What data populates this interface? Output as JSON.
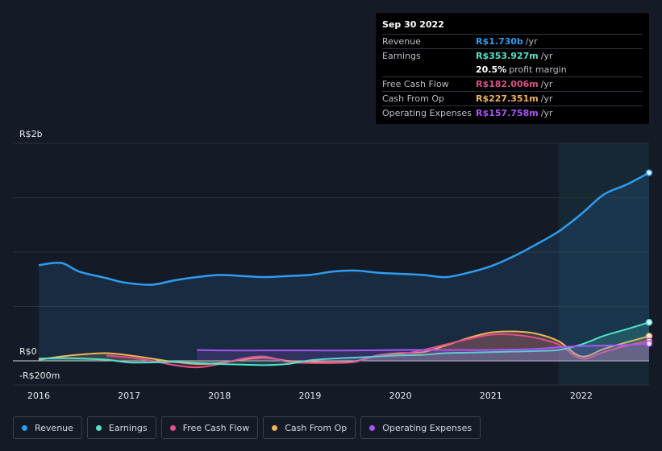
{
  "tooltip": {
    "date": "Sep 30 2022",
    "rows": [
      {
        "label": "Revenue",
        "value": "R$1.730b",
        "unit": "/yr",
        "color": "#2e9cf0"
      },
      {
        "label": "Earnings",
        "value": "R$353.927m",
        "unit": "/yr",
        "color": "#4fe3cc"
      },
      {
        "label": "",
        "value": "20.5%",
        "unit": "profit margin",
        "color": "#ffffff"
      },
      {
        "label": "Free Cash Flow",
        "value": "R$182.006m",
        "unit": "/yr",
        "color": "#e0508a"
      },
      {
        "label": "Cash From Op",
        "value": "R$227.351m",
        "unit": "/yr",
        "color": "#f0b35a"
      },
      {
        "label": "Operating Expenses",
        "value": "R$157.758m",
        "unit": "/yr",
        "color": "#a855f7"
      }
    ]
  },
  "legend": [
    {
      "label": "Revenue",
      "color": "#2e9cf0"
    },
    {
      "label": "Earnings",
      "color": "#4fe3cc"
    },
    {
      "label": "Free Cash Flow",
      "color": "#e0508a"
    },
    {
      "label": "Cash From Op",
      "color": "#f0b35a"
    },
    {
      "label": "Operating Expenses",
      "color": "#a855f7"
    }
  ],
  "chart_data": {
    "type": "area",
    "y_tick_labels": [
      "R$2b",
      "R$0",
      "-R$200m"
    ],
    "ylim": [
      -200,
      2000
    ],
    "x_tick_labels": [
      "2016",
      "2017",
      "2018",
      "2019",
      "2020",
      "2021",
      "2022"
    ],
    "xlim": [
      2015.9,
      2022.75
    ],
    "highlight_start": 2021.75,
    "grid": true,
    "series": [
      {
        "name": "Revenue",
        "color": "#2e9cf0",
        "x": [
          2016.0,
          2016.25,
          2016.45,
          2016.75,
          2016.95,
          2017.25,
          2017.5,
          2017.75,
          2018.0,
          2018.25,
          2018.5,
          2018.75,
          2019.0,
          2019.25,
          2019.5,
          2019.75,
          2020.0,
          2020.25,
          2020.5,
          2020.75,
          2021.0,
          2021.25,
          2021.5,
          2021.75,
          2022.0,
          2022.25,
          2022.5,
          2022.75
        ],
        "y": [
          880,
          900,
          820,
          760,
          720,
          700,
          740,
          770,
          790,
          780,
          770,
          780,
          790,
          820,
          830,
          810,
          800,
          790,
          770,
          810,
          870,
          960,
          1070,
          1190,
          1350,
          1530,
          1620,
          1730
        ]
      },
      {
        "name": "Earnings",
        "color": "#4fe3cc",
        "x": [
          2016.0,
          2016.25,
          2016.5,
          2016.75,
          2017.0,
          2017.25,
          2017.5,
          2017.75,
          2018.0,
          2018.25,
          2018.5,
          2018.75,
          2019.0,
          2019.25,
          2019.5,
          2019.75,
          2020.0,
          2020.25,
          2020.5,
          2020.75,
          2021.0,
          2021.25,
          2021.5,
          2021.75,
          2022.0,
          2022.25,
          2022.5,
          2022.75
        ],
        "y": [
          20,
          25,
          20,
          10,
          -15,
          -15,
          -10,
          -20,
          -30,
          -35,
          -40,
          -30,
          5,
          20,
          30,
          40,
          50,
          55,
          70,
          75,
          80,
          85,
          90,
          100,
          150,
          230,
          290,
          354
        ]
      },
      {
        "name": "Free Cash Flow",
        "color": "#e0508a",
        "x": [
          2016.75,
          2017.0,
          2017.25,
          2017.5,
          2017.75,
          2018.0,
          2018.25,
          2018.5,
          2018.75,
          2019.0,
          2019.25,
          2019.5,
          2019.75,
          2020.0,
          2020.25,
          2020.5,
          2020.75,
          2021.0,
          2021.25,
          2021.5,
          2021.75,
          2022.0,
          2022.25,
          2022.5,
          2022.75
        ],
        "y": [
          50,
          30,
          0,
          -40,
          -60,
          -30,
          20,
          40,
          -10,
          -20,
          -20,
          -10,
          50,
          60,
          100,
          150,
          200,
          240,
          240,
          210,
          150,
          20,
          80,
          140,
          182
        ]
      },
      {
        "name": "Cash From Op",
        "color": "#f0b35a",
        "x": [
          2016.0,
          2016.25,
          2016.5,
          2016.75,
          2017.0,
          2017.25,
          2017.5,
          2017.75,
          2018.0,
          2018.25,
          2018.5,
          2018.75,
          2019.0,
          2019.25,
          2019.5,
          2019.75,
          2020.0,
          2020.25,
          2020.5,
          2020.75,
          2021.0,
          2021.25,
          2021.5,
          2021.75,
          2022.0,
          2022.25,
          2022.5,
          2022.75
        ],
        "y": [
          10,
          40,
          60,
          70,
          50,
          20,
          -10,
          -30,
          -20,
          10,
          30,
          0,
          -10,
          -15,
          -5,
          50,
          70,
          80,
          140,
          210,
          260,
          270,
          250,
          180,
          40,
          110,
          170,
          227
        ]
      },
      {
        "name": "Operating Expenses",
        "color": "#a855f7",
        "x": [
          2017.75,
          2018.0,
          2018.5,
          2019.0,
          2019.5,
          2020.0,
          2020.5,
          2021.0,
          2021.5,
          2021.75,
          2022.0,
          2022.5,
          2022.75
        ],
        "y": [
          100,
          95,
          95,
          95,
          95,
          100,
          100,
          100,
          110,
          125,
          135,
          145,
          158
        ]
      }
    ]
  }
}
